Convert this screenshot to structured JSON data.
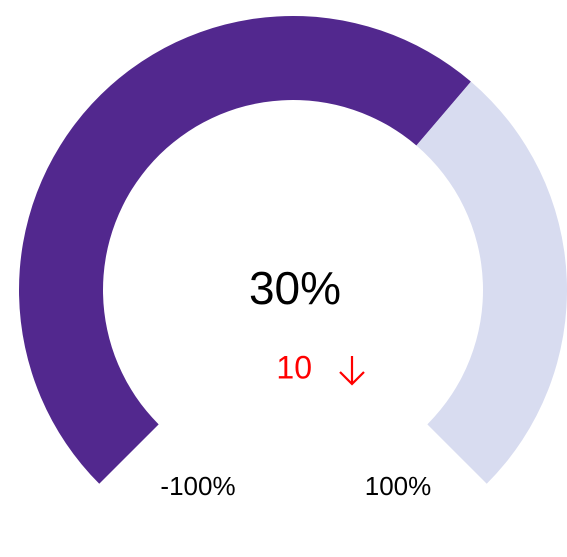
{
  "chart_data": {
    "type": "gauge",
    "value": 30,
    "value_label": "30%",
    "delta": 10,
    "delta_color": "#ff0000",
    "ylim": [
      -100,
      100
    ],
    "yticks": [
      {
        "value": -100,
        "label": "-100%"
      },
      {
        "value": 100,
        "label": "100%"
      }
    ],
    "bar_color": "#52288e",
    "track_color": "#d8dcf0"
  }
}
